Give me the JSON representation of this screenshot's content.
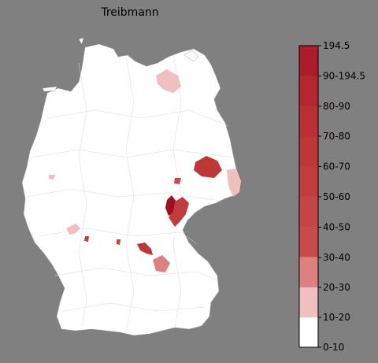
{
  "title": "Treibmann",
  "colors": {
    "background": "#808080",
    "land": "#ffffff",
    "border": "#d8d8d8",
    "outline": "#9a9a9a"
  },
  "legend": {
    "bins": [
      {
        "label": "0-10",
        "color": "#ffffff"
      },
      {
        "label": "10-20",
        "color": "#f0c0c0"
      },
      {
        "label": "20-30",
        "color": "#dc8080"
      },
      {
        "label": "30-40",
        "color": "#c94a4a"
      },
      {
        "label": "40-50",
        "color": "#c64444"
      },
      {
        "label": "50-60",
        "color": "#c23c3c"
      },
      {
        "label": "60-70",
        "color": "#bf3636"
      },
      {
        "label": "70-80",
        "color": "#bb2e32"
      },
      {
        "label": "80-90",
        "color": "#b52630"
      },
      {
        "label": "90-194.5",
        "color": "#ad1c2a"
      },
      {
        "label": "194.5",
        "color": "#9e0f22"
      }
    ]
  },
  "highlighted_regions": [
    {
      "name": "north-east-district",
      "bin": "10-20"
    },
    {
      "name": "east-district-large",
      "bin": "60-70"
    },
    {
      "name": "east-border-district",
      "bin": "10-20"
    },
    {
      "name": "central-small-district",
      "bin": "30-40"
    },
    {
      "name": "central-district-dark",
      "bin": "194.5"
    },
    {
      "name": "central-district-adjacent",
      "bin": "50-60"
    },
    {
      "name": "west-small-district",
      "bin": "10-20"
    },
    {
      "name": "south-west-district",
      "bin": "10-20"
    },
    {
      "name": "south-west-tiny-district",
      "bin": "50-60"
    },
    {
      "name": "south-tiny-district",
      "bin": "40-50"
    },
    {
      "name": "south-district",
      "bin": "60-70"
    },
    {
      "name": "south-east-district",
      "bin": "20-30"
    }
  ]
}
